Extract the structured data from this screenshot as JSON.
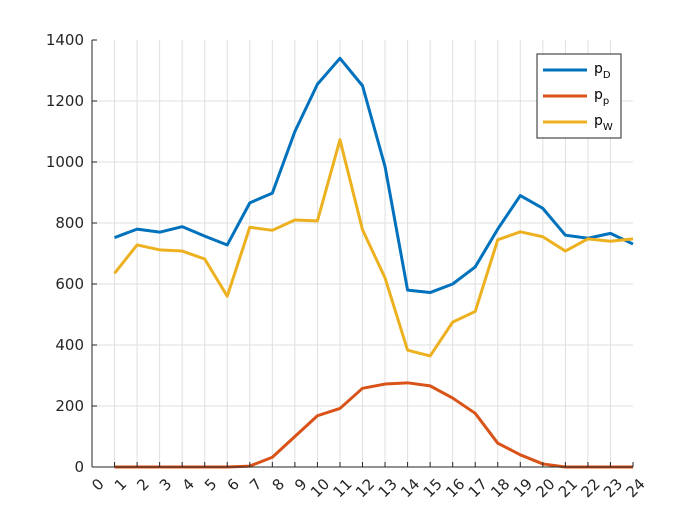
{
  "chart_data": {
    "type": "line",
    "title": "",
    "xlabel": "",
    "ylabel": "",
    "xlim": [
      0,
      24
    ],
    "ylim": [
      0,
      1400
    ],
    "x_ticks": [
      0,
      1,
      2,
      3,
      4,
      5,
      6,
      7,
      8,
      9,
      10,
      11,
      12,
      13,
      14,
      15,
      16,
      17,
      18,
      19,
      20,
      21,
      22,
      23,
      24
    ],
    "x_tick_labels": [
      "0",
      "1",
      "2",
      "3",
      "4",
      "5",
      "6",
      "7",
      "8",
      "9",
      "10",
      "11",
      "12",
      "13",
      "14",
      "15",
      "16",
      "17",
      "18",
      "19",
      "20",
      "21",
      "22",
      "23",
      "24"
    ],
    "y_ticks": [
      0,
      200,
      400,
      600,
      800,
      1000,
      1200,
      1400
    ],
    "y_tick_labels": [
      "0",
      "200",
      "400",
      "600",
      "800",
      "1000",
      "1200",
      "1400"
    ],
    "grid": true,
    "legend_position": "top-right",
    "x": [
      1,
      2,
      3,
      4,
      5,
      6,
      7,
      8,
      9,
      10,
      11,
      12,
      13,
      14,
      15,
      16,
      17,
      18,
      19,
      20,
      21,
      22,
      23,
      24
    ],
    "series": [
      {
        "name_base": "p",
        "name_sub": "D",
        "color": "#0072bd",
        "values": [
          752,
          780,
          770,
          788,
          757,
          728,
          866,
          898,
          1100,
          1255,
          1340,
          1250,
          985,
          580,
          572,
          600,
          656,
          780,
          890,
          848,
          760,
          750,
          766,
          731
        ]
      },
      {
        "name_base": "p",
        "name_sub": "p",
        "color": "#d95319",
        "values": [
          0,
          0,
          0,
          0,
          0,
          0,
          3,
          32,
          100,
          168,
          192,
          258,
          272,
          276,
          266,
          226,
          176,
          78,
          40,
          10,
          0,
          0,
          0,
          0
        ]
      },
      {
        "name_base": "p",
        "name_sub": "W",
        "color": "#edb120",
        "values": [
          635,
          728,
          712,
          708,
          682,
          560,
          786,
          776,
          810,
          807,
          1073,
          778,
          620,
          383,
          364,
          475,
          510,
          745,
          771,
          755,
          708,
          748,
          740,
          748
        ]
      }
    ]
  }
}
